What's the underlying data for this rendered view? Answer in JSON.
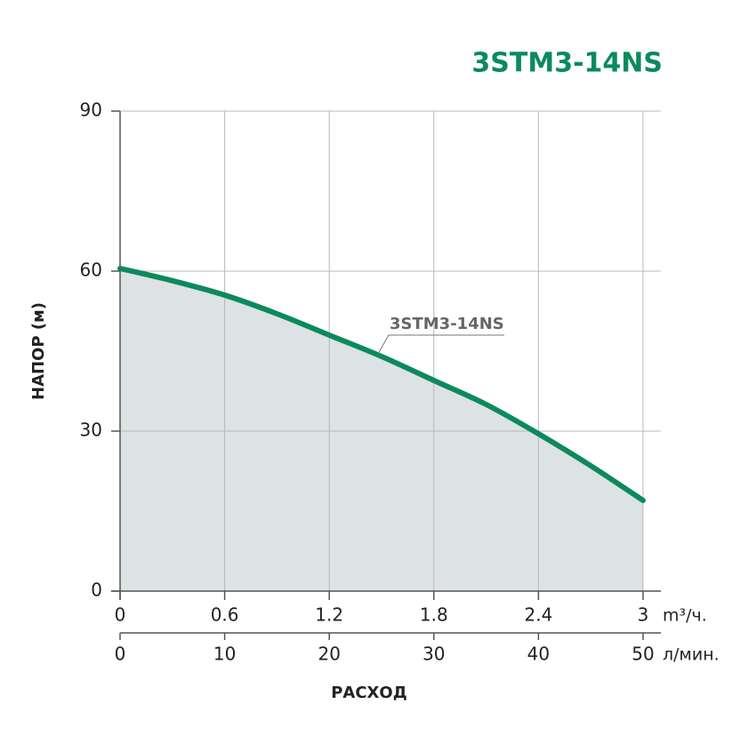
{
  "chart_data": {
    "type": "line",
    "title": "3STM3-14NS",
    "x_label": "РАСХОД",
    "y_label": "НАПОР (м)",
    "x": [
      0,
      0.3,
      0.6,
      0.9,
      1.2,
      1.5,
      1.8,
      2.1,
      2.4,
      2.7,
      3
    ],
    "series": [
      {
        "name": "3STM3-14NS",
        "color": "#0b8a5c",
        "values": [
          60.5,
          58.2,
          55.5,
          52,
          48,
          44,
          39.5,
          35,
          29.5,
          23.5,
          17
        ]
      }
    ],
    "xlim": [
      0,
      3
    ],
    "xticks": [
      0,
      0.6,
      1.2,
      1.8,
      2.4,
      3
    ],
    "x_unit": "m³/ч.",
    "x2lim": [
      0,
      50
    ],
    "x2ticks": [
      0,
      10,
      20,
      30,
      40,
      50
    ],
    "x2_unit": "л/мин.",
    "ylim": [
      0,
      90
    ],
    "yticks": [
      0,
      30,
      60,
      90
    ],
    "grid": true,
    "fill_color": "#dde2e4"
  }
}
